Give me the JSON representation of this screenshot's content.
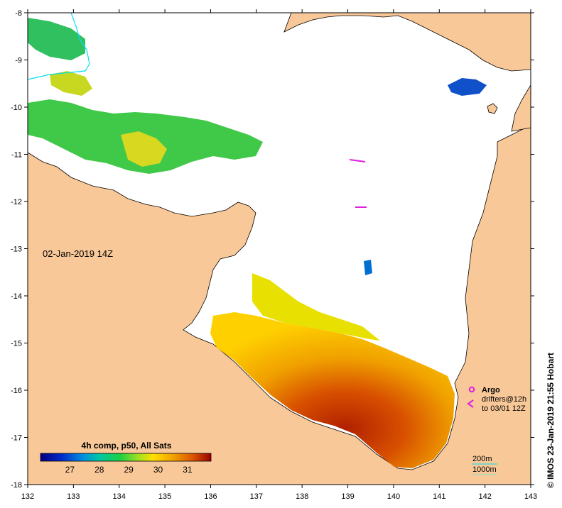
{
  "map": {
    "date_label": "02-Jan-2019 14Z",
    "credit": "© IMOS 23-Jan-2019 21:55 Hobart",
    "x_ticks": [
      "132",
      "133",
      "134",
      "135",
      "136",
      "137",
      "138",
      "139",
      "140",
      "141",
      "142",
      "143"
    ],
    "y_ticks": [
      "-8",
      "-9",
      "-10",
      "-11",
      "-12",
      "-13",
      "-14",
      "-15",
      "-16",
      "-17",
      "-18"
    ],
    "colors": {
      "land": "#f9c898",
      "sea": "#ffffff",
      "frame": "#000000",
      "argo": "#e020e0",
      "contour_1000m": "#7fe0c0",
      "contour_200m": "#00e0f0"
    }
  },
  "colorbar": {
    "title": "4h comp, p50, All Sats",
    "ticks": [
      "27",
      "28",
      "29",
      "30",
      "31"
    ],
    "range": [
      26.0,
      31.8
    ]
  },
  "legend": {
    "argo": "Argo",
    "drifters_line1": "drifters@12h",
    "drifters_line2": "to 03/01 12Z",
    "contour_200": "200m",
    "contour_1000": "1000m"
  }
}
